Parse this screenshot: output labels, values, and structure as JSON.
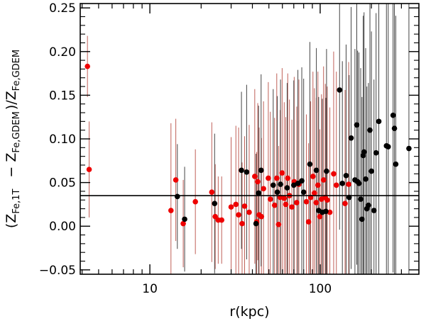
{
  "chart_data": {
    "type": "scatter",
    "title": "",
    "xlabel": "r(kpc)",
    "ylabel": {
      "open": "(Z",
      "sub1": "Fe,1T",
      "minus": "− Z",
      "sub2": "Fe,GDEM",
      "close": ")/Z",
      "sub3": "Fe,GDEM"
    },
    "xscale": "log",
    "xlim": [
      3.9,
      380
    ],
    "ylim": [
      -0.055,
      0.255
    ],
    "x_major_ticks": [
      10,
      100
    ],
    "x_tick_labels": [
      "10",
      "100"
    ],
    "x_minor_ticks": [
      4,
      5,
      6,
      7,
      8,
      9,
      20,
      30,
      40,
      50,
      60,
      70,
      80,
      90,
      200,
      300
    ],
    "y_ticks": [
      -0.05,
      0.0,
      0.05,
      0.1,
      0.15,
      0.2,
      0.25
    ],
    "y_tick_labels": [
      "−0.05",
      "0.00",
      "0.05",
      "0.10",
      "0.15",
      "0.20",
      "0.25"
    ],
    "y_minor_step": 0.01,
    "hline": 0.035,
    "colors": {
      "red": "#ee0000",
      "black": "#000000",
      "red_errorbar": "#c06058",
      "black_errorbar": "#444444"
    },
    "series": [
      {
        "color": "red",
        "points": [
          [
            4.3,
            0.183,
            0.035
          ],
          [
            4.4,
            0.065,
            0.055
          ],
          [
            13.3,
            0.018,
            0.1
          ],
          [
            14.2,
            0.053,
            0.07
          ],
          [
            15.7,
            0.003,
            0.05
          ],
          [
            18.5,
            0.028,
            0.06
          ],
          [
            23.1,
            0.039,
            0.08
          ],
          [
            24.2,
            0.011,
            0.06
          ],
          [
            25.2,
            0.007,
            0.05
          ],
          [
            26.4,
            0.007,
            0.05
          ],
          [
            30.0,
            0.022,
            0.08
          ],
          [
            32.0,
            0.025,
            0.09
          ],
          [
            33.2,
            0.013,
            0.1
          ],
          [
            34.8,
            0.003,
            0.07
          ],
          [
            36.0,
            0.023,
            0.08
          ],
          [
            38.3,
            0.016,
            0.1
          ],
          [
            41.3,
            0.057,
            0.1
          ],
          [
            42.4,
            0.005,
            0.08
          ],
          [
            43.0,
            0.051,
            0.09
          ],
          [
            43.8,
            0.013,
            0.1
          ],
          [
            45.2,
            0.011,
            0.09
          ],
          [
            46.5,
            0.043,
            0.1
          ],
          [
            49.6,
            0.055,
            0.11
          ],
          [
            51.0,
            0.031,
            0.1
          ],
          [
            54.0,
            0.024,
            0.1
          ],
          [
            55.6,
            0.055,
            0.12
          ],
          [
            57.0,
            0.002,
            0.09
          ],
          [
            58.2,
            0.033,
            0.1
          ],
          [
            59.8,
            0.061,
            0.12
          ],
          [
            61.5,
            0.032,
            0.11
          ],
          [
            62.8,
            0.025,
            0.1
          ],
          [
            64.5,
            0.055,
            0.12
          ],
          [
            66.0,
            0.035,
            0.11
          ],
          [
            68.2,
            0.022,
            0.1
          ],
          [
            70.4,
            0.051,
            0.12
          ],
          [
            72.8,
            0.027,
            0.11
          ],
          [
            75.0,
            0.048,
            0.12
          ],
          [
            83.0,
            0.028,
            0.1
          ],
          [
            85.5,
            0.005,
            0.09
          ],
          [
            88.0,
            0.033,
            0.11
          ],
          [
            90.7,
            0.057,
            0.12
          ],
          [
            92.5,
            0.038,
            0.12
          ],
          [
            94.8,
            0.027,
            0.12
          ],
          [
            97.0,
            0.047,
            0.13
          ],
          [
            99.5,
            0.011,
            0.1
          ],
          [
            101.8,
            0.031,
            0.12
          ],
          [
            104.7,
            0.053,
            0.13
          ],
          [
            107.2,
            0.033,
            0.13
          ],
          [
            110.0,
            0.03,
            0.13
          ],
          [
            114.0,
            0.016,
            0.12
          ],
          [
            120.0,
            0.06,
            0.14
          ],
          [
            124.5,
            0.047,
            0.13
          ],
          [
            140.0,
            0.026,
            0.13
          ],
          [
            147.0,
            0.048,
            0.14
          ]
        ]
      },
      {
        "color": "black",
        "points": [
          [
            14.5,
            0.034,
            0.06
          ],
          [
            16.0,
            0.008,
            0.06
          ],
          [
            24.0,
            0.026,
            0.08
          ],
          [
            34.5,
            0.064,
            0.09
          ],
          [
            37.0,
            0.062,
            0.1
          ],
          [
            42.0,
            0.003,
            0.08
          ],
          [
            43.5,
            0.038,
            0.1
          ],
          [
            45.0,
            0.064,
            0.11
          ],
          [
            53.0,
            0.047,
            0.11
          ],
          [
            56.0,
            0.039,
            0.11
          ],
          [
            58.5,
            0.048,
            0.12
          ],
          [
            64.0,
            0.044,
            0.12
          ],
          [
            70.0,
            0.047,
            0.12
          ],
          [
            74.0,
            0.049,
            0.13
          ],
          [
            78.0,
            0.052,
            0.13
          ],
          [
            80.0,
            0.039,
            0.13
          ],
          [
            87.0,
            0.071,
            0.14
          ],
          [
            95.0,
            0.064,
            0.14
          ],
          [
            98.0,
            0.018,
            0.13
          ],
          [
            103.0,
            0.016,
            0.13
          ],
          [
            108.0,
            0.017,
            0.13
          ],
          [
            109.0,
            0.063,
            0.14
          ],
          [
            130.0,
            0.156,
            0.16
          ],
          [
            135.0,
            0.049,
            0.14
          ],
          [
            142.0,
            0.058,
            0.15
          ],
          [
            148.0,
            0.033,
            0.14
          ],
          [
            152.0,
            0.101,
            0.15
          ],
          [
            160.0,
            0.053,
            0.15
          ],
          [
            164.0,
            0.116,
            0.16
          ],
          [
            166.0,
            0.051,
            0.15
          ],
          [
            169.0,
            0.049,
            0.15
          ],
          [
            173.0,
            0.031,
            0.15
          ],
          [
            176.0,
            0.008,
            0.14
          ],
          [
            179.0,
            0.081,
            0.16
          ],
          [
            181.0,
            0.085,
            0.16
          ],
          [
            185.0,
            0.054,
            0.15
          ],
          [
            188.0,
            0.02,
            0.14
          ],
          [
            192.0,
            0.024,
            0.14
          ],
          [
            196.0,
            0.11,
            0.17
          ],
          [
            200.0,
            0.063,
            0.16
          ],
          [
            207.0,
            0.018,
            0.15
          ],
          [
            213.0,
            0.084,
            0.16
          ],
          [
            221.0,
            0.12,
            0.18
          ],
          [
            245.0,
            0.092,
            0.17
          ],
          [
            251.0,
            0.091,
            0.17
          ],
          [
            268.0,
            0.127,
            0.18
          ],
          [
            273.0,
            0.112,
            0.18
          ],
          [
            278.0,
            0.071,
            0.17
          ],
          [
            332.0,
            0.089,
            0.18
          ]
        ]
      }
    ]
  }
}
